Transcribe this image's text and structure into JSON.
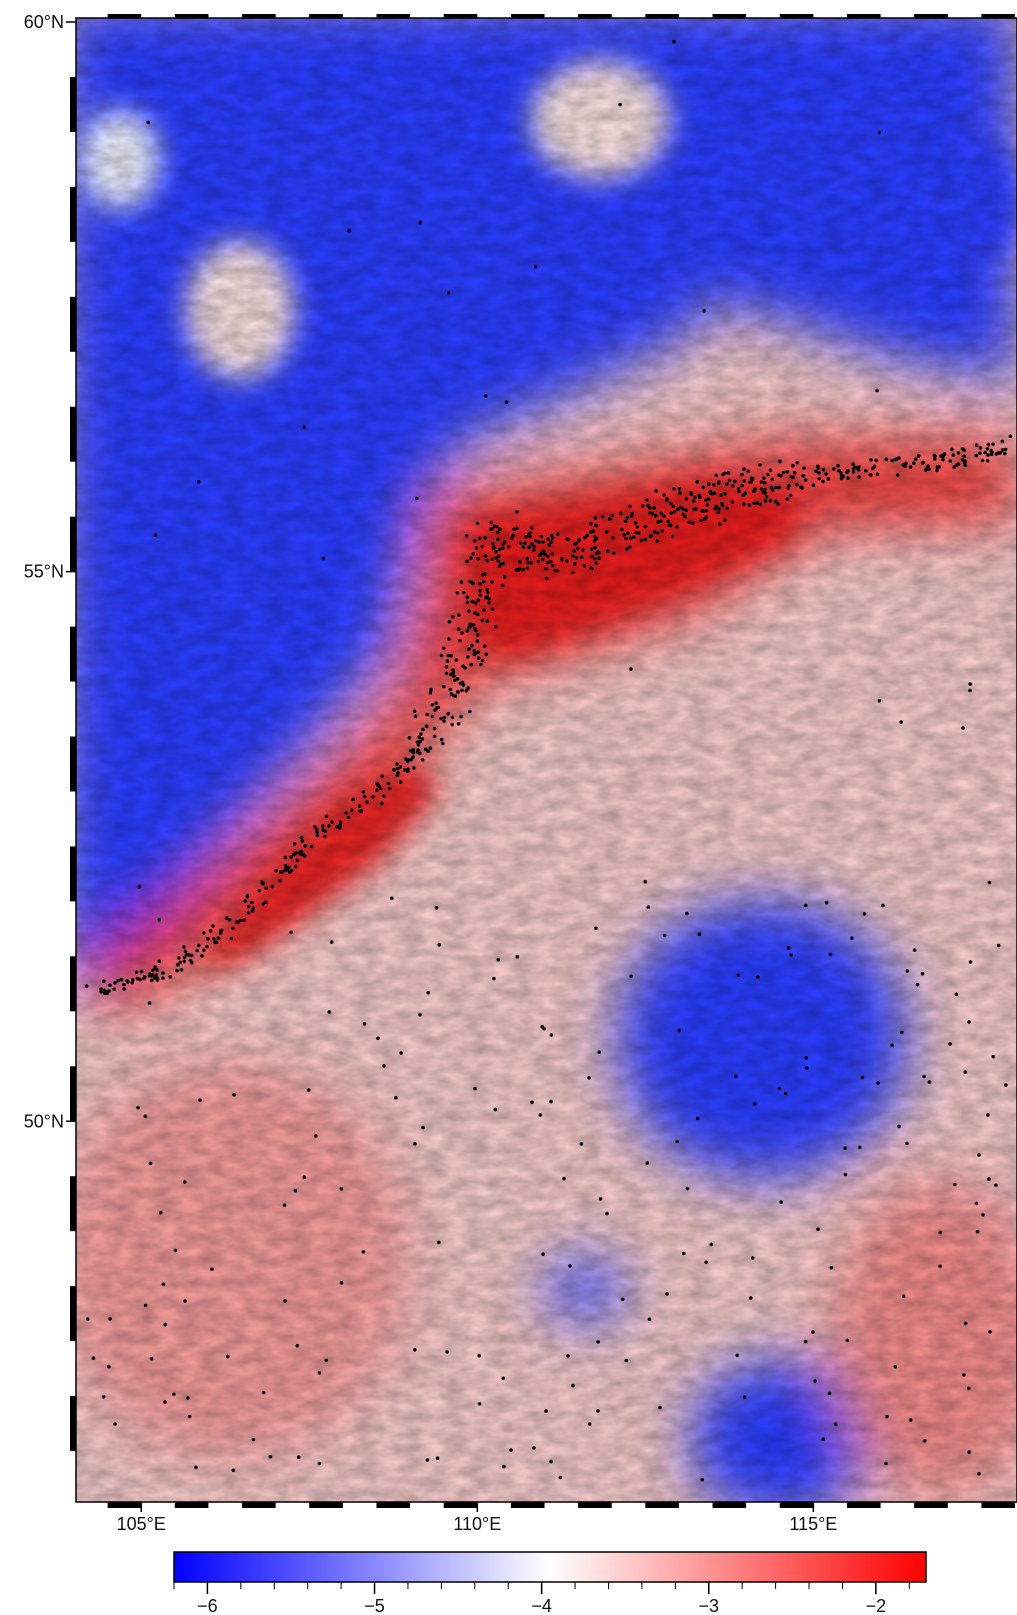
{
  "map": {
    "lat_axis": {
      "range": [
        46.5,
        60
      ],
      "ticks": [
        {
          "value": 60,
          "label": "60°N"
        },
        {
          "value": 55,
          "label": "55°N"
        },
        {
          "value": 50,
          "label": "50°N"
        }
      ]
    },
    "lon_axis": {
      "range": [
        104,
        118
      ],
      "ticks": [
        {
          "value": 105,
          "label": "105°E"
        },
        {
          "value": 110,
          "label": "110°E"
        },
        {
          "value": 115,
          "label": "115°E"
        }
      ]
    },
    "colormap": {
      "low_color": "#0000ff",
      "mid_color": "#ffffff",
      "high_color": "#ff0000",
      "range": [
        -6.2,
        -1.7
      ]
    },
    "colorbar": {
      "range": [
        -6.2,
        -1.7
      ],
      "ticks": [
        {
          "value": -6,
          "label": "−6"
        },
        {
          "value": -5,
          "label": "−5"
        },
        {
          "value": -4,
          "label": "−4"
        },
        {
          "value": -3,
          "label": "−3"
        },
        {
          "value": -2,
          "label": "−2"
        }
      ]
    },
    "colors": {
      "dot": "#000000",
      "frame": "#000000"
    }
  }
}
